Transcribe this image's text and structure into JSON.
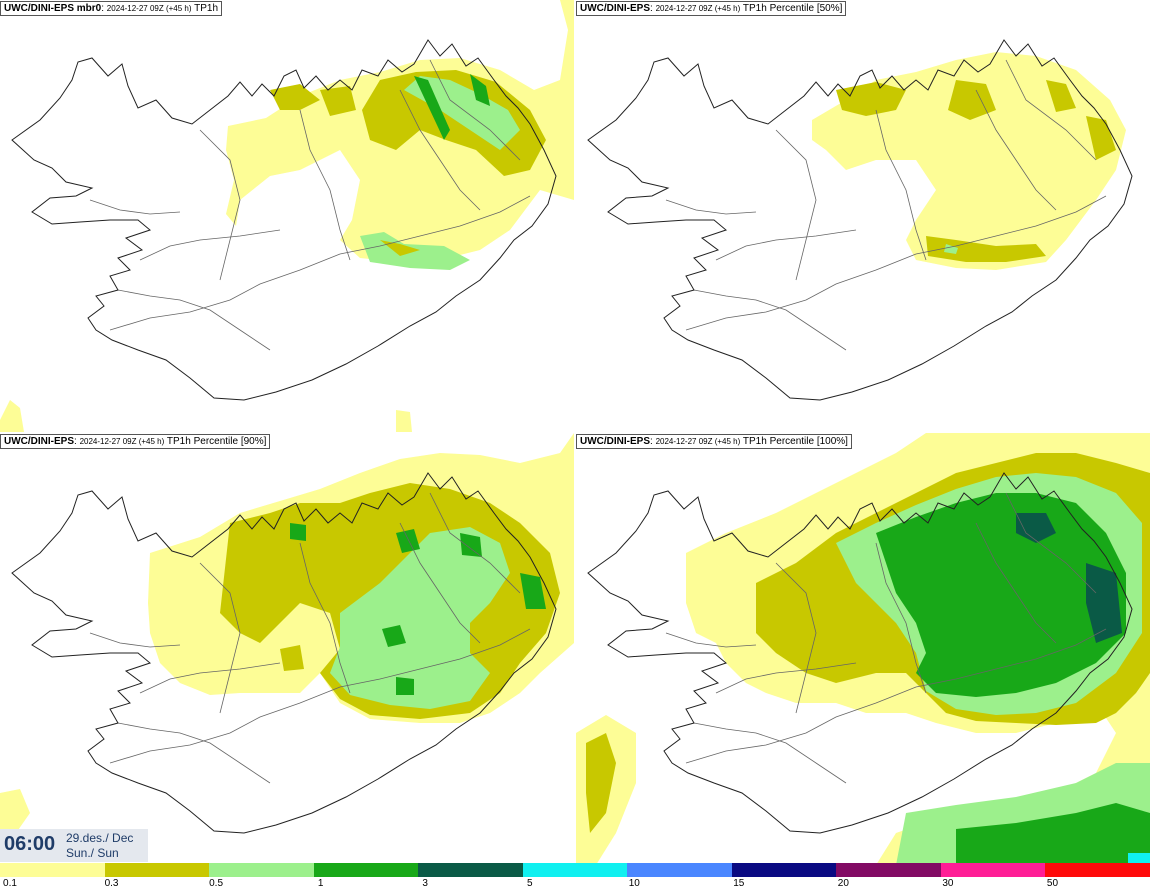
{
  "panels": [
    {
      "model": "UWC/DINI-EPS mbr0",
      "meta": "2024-12-27 09Z (+45 h)",
      "field": "TP1h"
    },
    {
      "model": "UWC/DINI-EPS",
      "meta": "2024-12-27 09Z (+45 h)",
      "field": "TP1h Percentile [50%]"
    },
    {
      "model": "UWC/DINI-EPS",
      "meta": "2024-12-27 09Z (+45 h)",
      "field": "TP1h Percentile [90%]"
    },
    {
      "model": "UWC/DINI-EPS",
      "meta": "2024-12-27 09Z (+45 h)",
      "field": "TP1h Percentile [100%]"
    }
  ],
  "valid_time": {
    "time": "06:00",
    "date": "29.des./ Dec",
    "day": "Sun./ Sun"
  },
  "legend": {
    "labels": [
      "0.1",
      "0.3",
      "0.5",
      "1",
      "3",
      "5",
      "10",
      "15",
      "20",
      "30",
      "50"
    ],
    "colors": [
      "#fdfd96",
      "#c8c800",
      "#9cf08c",
      "#18a818",
      "#0a5a46",
      "#10f0f0",
      "#4a86ff",
      "#0a0a82",
      "#820a64",
      "#ff1e96",
      "#ff0a0a"
    ]
  }
}
